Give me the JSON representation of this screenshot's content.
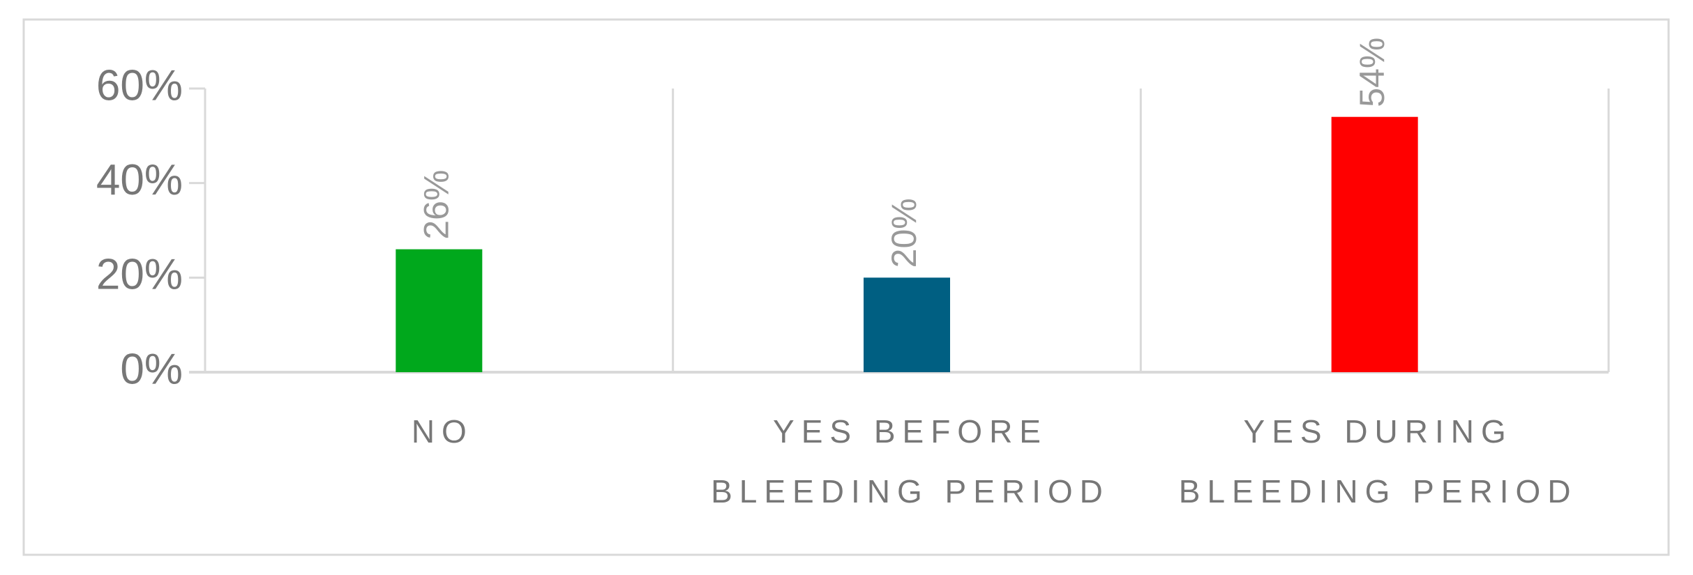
{
  "chart_data": {
    "type": "bar",
    "categories": [
      "NO",
      "YES BEFORE BLEEDING PERIOD",
      "YES DURING BLEEDING PERIOD"
    ],
    "values": [
      26,
      20,
      54
    ],
    "value_labels": [
      "26%",
      "20%",
      "54%"
    ],
    "colors": [
      "#00a81c",
      "#005f82",
      "#ff0000"
    ],
    "ylim": [
      0,
      60
    ],
    "yticks": [
      {
        "value": 0,
        "label": "0%"
      },
      {
        "value": 20,
        "label": "20%"
      },
      {
        "value": 40,
        "label": "40%"
      },
      {
        "value": 60,
        "label": "60%"
      }
    ],
    "grid": false
  }
}
